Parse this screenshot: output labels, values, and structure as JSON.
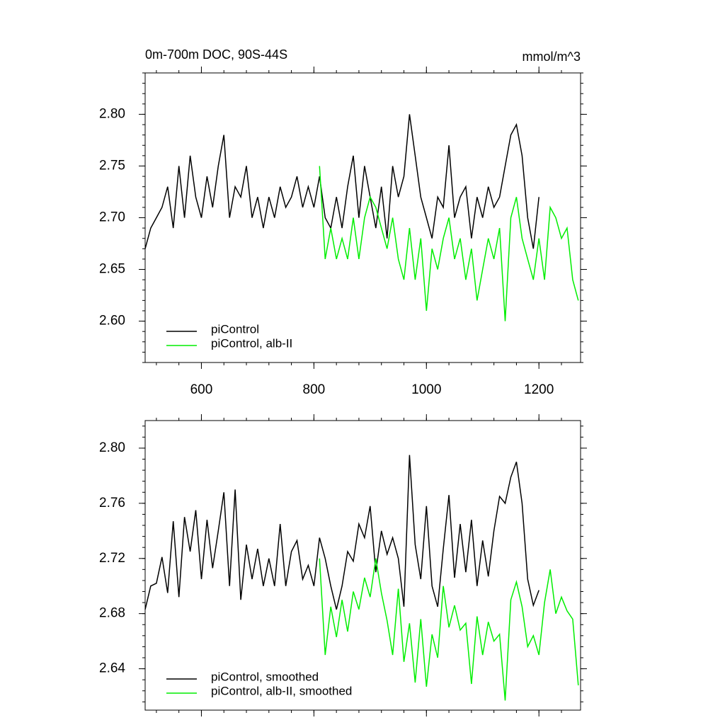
{
  "chart_data": [
    {
      "type": "line",
      "title": "0m-700m DOC, 90S-44S",
      "units": "mmol/m^3",
      "xlim": [
        500,
        1274
      ],
      "ylim": [
        2.56,
        2.84
      ],
      "xticks": [
        600,
        800,
        1000,
        1200
      ],
      "yticks": [
        {
          "value": 2.6,
          "label": "2.60"
        },
        2.65,
        {
          "value": 2.7,
          "label": "2.70"
        },
        2.75,
        {
          "value": 2.8,
          "label": "2.80"
        }
      ],
      "legend": "lower left",
      "series": [
        {
          "name": "piControl",
          "color": "#000000",
          "x": [
            500,
            510,
            520,
            530,
            540,
            550,
            560,
            570,
            580,
            590,
            600,
            610,
            620,
            630,
            640,
            650,
            660,
            670,
            680,
            690,
            700,
            710,
            720,
            730,
            740,
            750,
            760,
            770,
            780,
            790,
            800,
            810,
            820,
            830,
            840,
            850,
            860,
            870,
            880,
            890,
            900,
            910,
            920,
            930,
            940,
            950,
            960,
            970,
            980,
            990,
            1000,
            1010,
            1020,
            1030,
            1040,
            1050,
            1060,
            1070,
            1080,
            1090,
            1100,
            1110,
            1120,
            1130,
            1140,
            1150,
            1160,
            1170,
            1180,
            1190,
            1200
          ],
          "values": [
            2.67,
            2.69,
            2.7,
            2.71,
            2.73,
            2.69,
            2.75,
            2.7,
            2.76,
            2.72,
            2.7,
            2.74,
            2.71,
            2.75,
            2.78,
            2.7,
            2.73,
            2.72,
            2.75,
            2.7,
            2.72,
            2.69,
            2.72,
            2.7,
            2.73,
            2.71,
            2.72,
            2.74,
            2.71,
            2.73,
            2.71,
            2.74,
            2.7,
            2.69,
            2.72,
            2.69,
            2.73,
            2.76,
            2.7,
            2.75,
            2.72,
            2.69,
            2.73,
            2.68,
            2.75,
            2.72,
            2.74,
            2.8,
            2.76,
            2.72,
            2.7,
            2.68,
            2.72,
            2.71,
            2.77,
            2.7,
            2.72,
            2.73,
            2.68,
            2.72,
            2.7,
            2.73,
            2.71,
            2.72,
            2.75,
            2.78,
            2.79,
            2.76,
            2.7,
            2.67,
            2.72
          ]
        },
        {
          "name": "piControl, alb-II",
          "color": "#00ee00",
          "x": [
            810,
            820,
            830,
            840,
            850,
            860,
            870,
            880,
            890,
            900,
            910,
            920,
            930,
            940,
            950,
            960,
            970,
            980,
            990,
            1000,
            1010,
            1020,
            1030,
            1040,
            1050,
            1060,
            1070,
            1080,
            1090,
            1100,
            1110,
            1120,
            1130,
            1140,
            1150,
            1160,
            1170,
            1180,
            1190,
            1200,
            1210,
            1220,
            1230,
            1240,
            1250,
            1260,
            1270
          ],
          "values": [
            2.75,
            2.66,
            2.69,
            2.66,
            2.68,
            2.66,
            2.7,
            2.66,
            2.7,
            2.72,
            2.71,
            2.69,
            2.67,
            2.7,
            2.66,
            2.64,
            2.69,
            2.64,
            2.68,
            2.61,
            2.67,
            2.65,
            2.68,
            2.7,
            2.66,
            2.68,
            2.64,
            2.67,
            2.62,
            2.65,
            2.68,
            2.66,
            2.69,
            2.6,
            2.7,
            2.72,
            2.68,
            2.66,
            2.64,
            2.68,
            2.64,
            2.71,
            2.7,
            2.68,
            2.69,
            2.64,
            2.62
          ]
        }
      ]
    },
    {
      "type": "line",
      "xlim": [
        500,
        1274
      ],
      "ylim": [
        2.61,
        2.82
      ],
      "xticks": [
        600,
        800,
        1000,
        1200
      ],
      "yticks": [
        2.64,
        2.68,
        2.72,
        2.76,
        {
          "value": 2.8,
          "label": "2.80"
        }
      ],
      "legend": "lower left",
      "series": [
        {
          "name": "piControl, smoothed",
          "color": "#000000",
          "x": [
            500,
            510,
            520,
            530,
            540,
            550,
            560,
            570,
            580,
            590,
            600,
            610,
            620,
            630,
            640,
            650,
            660,
            670,
            680,
            690,
            700,
            710,
            720,
            730,
            740,
            750,
            760,
            770,
            780,
            790,
            800,
            810,
            820,
            830,
            840,
            850,
            860,
            870,
            880,
            890,
            900,
            910,
            920,
            930,
            940,
            950,
            960,
            970,
            980,
            990,
            1000,
            1010,
            1020,
            1030,
            1040,
            1050,
            1060,
            1070,
            1080,
            1090,
            1100,
            1110,
            1120,
            1130,
            1140,
            1150,
            1160,
            1170,
            1180,
            1190,
            1200
          ],
          "values": [
            2.683,
            2.7,
            2.702,
            2.721,
            2.695,
            2.747,
            2.692,
            2.75,
            2.725,
            2.755,
            2.705,
            2.748,
            2.713,
            2.74,
            2.768,
            2.7,
            2.77,
            2.69,
            2.73,
            2.705,
            2.727,
            2.7,
            2.72,
            2.7,
            2.745,
            2.7,
            2.725,
            2.733,
            2.705,
            2.715,
            2.7,
            2.735,
            2.72,
            2.7,
            2.683,
            2.7,
            2.725,
            2.718,
            2.745,
            2.735,
            2.758,
            2.71,
            2.74,
            2.723,
            2.735,
            2.72,
            2.685,
            2.795,
            2.73,
            2.705,
            2.758,
            2.7,
            2.685,
            2.727,
            2.766,
            2.706,
            2.745,
            2.71,
            2.748,
            2.7,
            2.733,
            2.707,
            2.74,
            2.765,
            2.76,
            2.779,
            2.79,
            2.76,
            2.705,
            2.686,
            2.697
          ]
        },
        {
          "name": "piControl, alb-II, smoothed",
          "color": "#00ee00",
          "x": [
            810,
            820,
            830,
            840,
            850,
            860,
            870,
            880,
            890,
            900,
            910,
            920,
            930,
            940,
            950,
            960,
            970,
            980,
            990,
            1000,
            1010,
            1020,
            1030,
            1040,
            1050,
            1060,
            1070,
            1080,
            1090,
            1100,
            1110,
            1120,
            1130,
            1140,
            1150,
            1160,
            1170,
            1180,
            1190,
            1200,
            1210,
            1220,
            1230,
            1240,
            1250,
            1260,
            1270
          ],
          "values": [
            2.72,
            2.65,
            2.685,
            2.663,
            2.69,
            2.667,
            2.696,
            2.683,
            2.706,
            2.692,
            2.72,
            2.695,
            2.675,
            2.65,
            2.698,
            2.645,
            2.673,
            2.63,
            2.676,
            2.627,
            2.665,
            2.648,
            2.7,
            2.67,
            2.686,
            2.668,
            2.673,
            2.629,
            2.678,
            2.65,
            2.674,
            2.66,
            2.665,
            2.617,
            2.69,
            2.703,
            2.685,
            2.656,
            2.664,
            2.65,
            2.688,
            2.712,
            2.68,
            2.692,
            2.682,
            2.676,
            2.628
          ]
        }
      ]
    }
  ]
}
